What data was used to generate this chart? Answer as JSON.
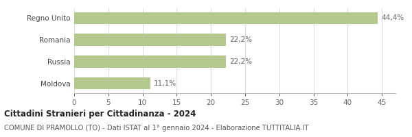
{
  "categories": [
    "Moldova",
    "Russia",
    "Romania",
    "Regno Unito"
  ],
  "values": [
    11.1,
    22.2,
    22.2,
    44.4
  ],
  "labels": [
    "11,1%",
    "22,2%",
    "22,2%",
    "44,4%"
  ],
  "bar_color": "#b5c98e",
  "background_color": "#ffffff",
  "xlim": [
    0,
    47
  ],
  "xticks": [
    0,
    5,
    10,
    15,
    20,
    25,
    30,
    35,
    40,
    45
  ],
  "title_bold": "Cittadini Stranieri per Cittadinanza - 2024",
  "subtitle": "COMUNE DI PRAMOLLO (TO) - Dati ISTAT al 1° gennaio 2024 - Elaborazione TUTTITALIA.IT",
  "title_fontsize": 8.5,
  "subtitle_fontsize": 7.2,
  "tick_fontsize": 7.5,
  "label_fontsize": 7.5,
  "bar_height": 0.55
}
